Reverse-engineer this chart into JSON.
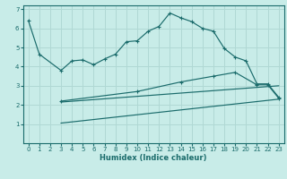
{
  "xlabel": "Humidex (Indice chaleur)",
  "bg_color": "#c8ece8",
  "grid_color": "#b0d8d4",
  "line_color": "#1a6b6b",
  "xlim": [
    -0.5,
    23.5
  ],
  "ylim": [
    0,
    7.2
  ],
  "xticks": [
    0,
    1,
    2,
    3,
    4,
    5,
    6,
    7,
    8,
    9,
    10,
    11,
    12,
    13,
    14,
    15,
    16,
    17,
    18,
    19,
    20,
    21,
    22,
    23
  ],
  "yticks": [
    1,
    2,
    3,
    4,
    5,
    6,
    7
  ],
  "line1_x": [
    0,
    1,
    3,
    4,
    5,
    6,
    7,
    8,
    9,
    10,
    11,
    12,
    13,
    14,
    15,
    16,
    17,
    18,
    19,
    20,
    21,
    22,
    23
  ],
  "line1_y": [
    6.4,
    4.65,
    3.8,
    4.3,
    4.35,
    4.1,
    4.4,
    4.65,
    5.3,
    5.35,
    5.85,
    6.1,
    6.8,
    6.55,
    6.35,
    6.0,
    5.85,
    4.95,
    4.5,
    4.3,
    3.1,
    3.1,
    2.4
  ],
  "line2_x": [
    3,
    10,
    14,
    17,
    19,
    21,
    22,
    23
  ],
  "line2_y": [
    2.2,
    2.7,
    3.2,
    3.5,
    3.7,
    3.05,
    3.05,
    2.35
  ],
  "line3_x": [
    3,
    23
  ],
  "line3_y": [
    2.15,
    3.0
  ],
  "line4_x": [
    3,
    23
  ],
  "line4_y": [
    1.05,
    2.3
  ]
}
